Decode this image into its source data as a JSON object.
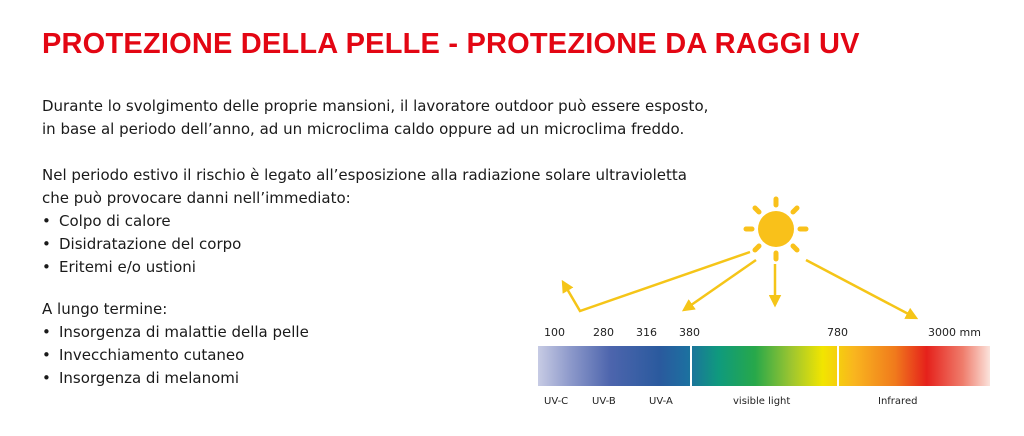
{
  "title": "PROTEZIONE DELLA PELLE - PROTEZIONE DA RAGGI UV",
  "intro": {
    "line1": "Durante lo svolgimento delle proprie mansioni, il lavoratore outdoor può essere esposto,",
    "line2": "in base al periodo dell’anno, ad un microclima caldo oppure ad un microclima freddo."
  },
  "summer": {
    "line1": "Nel periodo estivo il rischio è legato all’esposizione alla radiazione solare ultravioletta",
    "line2": "che può provocare danni nell’immediato:",
    "bullets": [
      "Colpo di calore",
      "Disidratazione del corpo",
      "Eritemi e/o ustioni"
    ]
  },
  "long_term": {
    "heading": "A lungo termine:",
    "bullets": [
      "Insorgenza di malattie della pelle",
      "Invecchiamento cutaneo",
      "Insorgenza di melanomi"
    ]
  },
  "spectrum": {
    "wavelengths": [
      "100",
      "280",
      "316",
      "380",
      "780",
      "3000 mm"
    ],
    "bands": [
      "UV-C",
      "UV-B",
      "UV-A",
      "visible light",
      "Infrared"
    ],
    "sun_icon": "sun-icon",
    "colors": {
      "sun": "#f9c11a",
      "arrow": "#f5c518"
    }
  }
}
